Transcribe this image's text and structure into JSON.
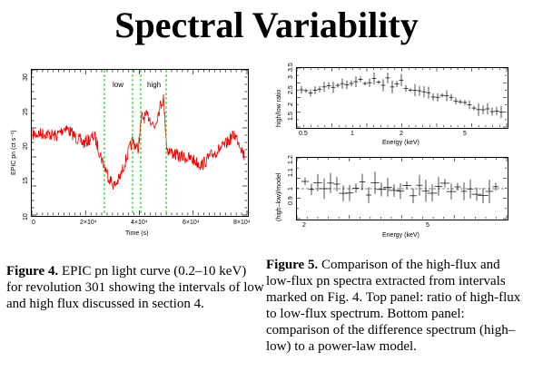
{
  "title": "Spectral Variability",
  "fig4": {
    "xlabel": "Time (s)",
    "ylabel": "EPIC pn (ct s⁻¹)",
    "xticks": [
      "0",
      "2×10⁴",
      "4×10⁴",
      "6×10⁴",
      "8×10⁴"
    ],
    "yticks": [
      "10",
      "15",
      "20",
      "25",
      "30"
    ],
    "label_low": "low",
    "label_high": "high",
    "caption_bold": "Figure 4.",
    "caption_text": " EPIC pn light curve (0.2–10 keV) for revolution 301 showing the intervals of low and high flux discussed in section 4."
  },
  "fig5": {
    "top": {
      "ylabel": "high/low ratio",
      "xlabel": "Energy (keV)",
      "xticks": [
        "0.5",
        "1",
        "2",
        "5"
      ],
      "yticks": [
        "1.5",
        "2",
        "2.5",
        "3",
        "3.5"
      ]
    },
    "bottom": {
      "ylabel": "(high–low)/model",
      "xlabel": "Energy (keV)",
      "xticks": [
        "2",
        "5"
      ],
      "yticks": [
        "0.9",
        "1",
        "1.1",
        "1.2"
      ]
    },
    "caption_bold": "Figure 5.",
    "caption_text": " Comparison of the high-flux and low-flux pn spectra extracted from intervals marked on Fig. 4. Top panel: ratio of high-flux to low-flux spectrum. Bottom panel: comparison of the difference spectrum (high–low) to a power-law model."
  },
  "colors": {
    "curve": "#ff0000",
    "markers": "#00cc00",
    "axes": "#000000"
  }
}
